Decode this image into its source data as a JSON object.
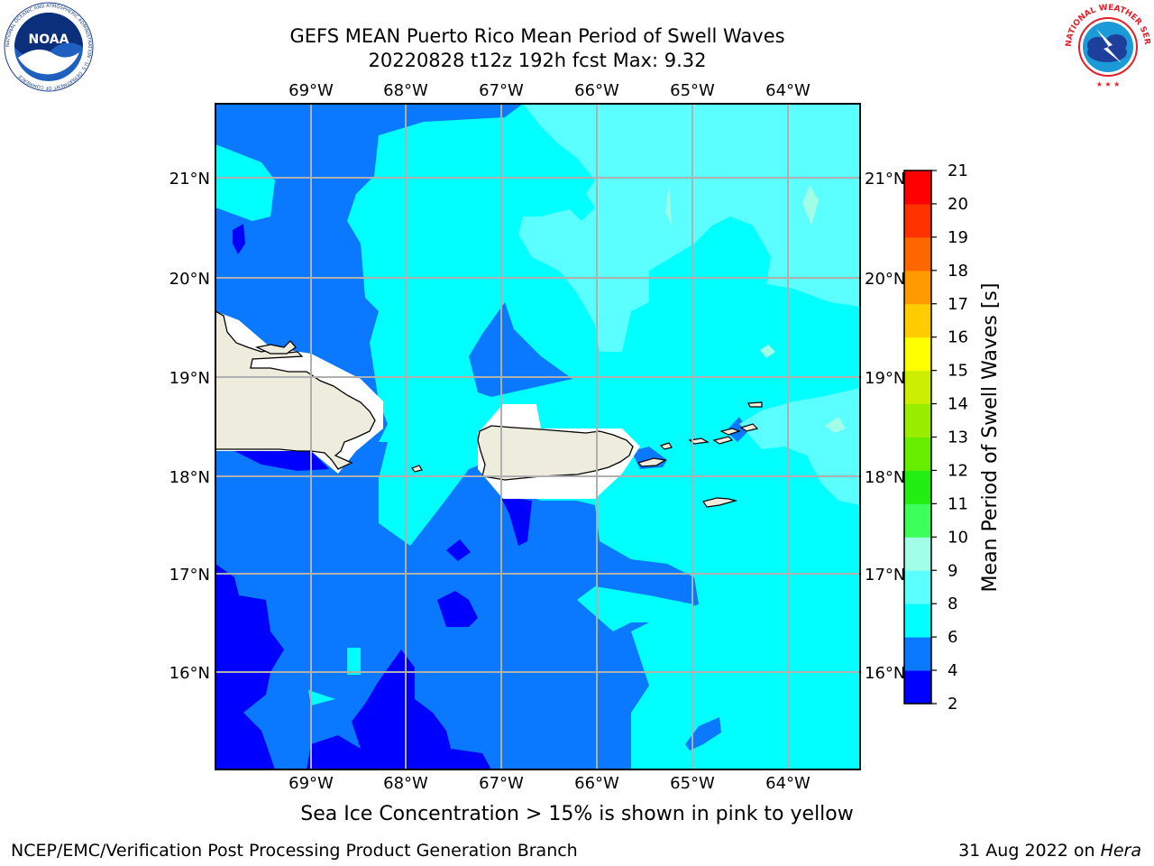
{
  "title": {
    "line1": "GEFS MEAN Puerto Rico Mean Period of Swell Waves",
    "line2": "20220828 t12z 192h fcst   Max: 9.32"
  },
  "map": {
    "lon_labels": [
      "69°W",
      "68°W",
      "67°W",
      "66°W",
      "65°W",
      "64°W"
    ],
    "lat_labels": [
      "21°N",
      "20°N",
      "19°N",
      "18°N",
      "17°N",
      "16°N"
    ],
    "land_color": "#eeecdc",
    "grid_color": "#b0b0b0"
  },
  "colorbar": {
    "label": "Mean Period of Swell Waves [s]",
    "ticks": [
      "2",
      "4",
      "6",
      "8",
      "9",
      "10",
      "11",
      "12",
      "13",
      "14",
      "15",
      "16",
      "17",
      "18",
      "19",
      "20",
      "21"
    ],
    "colors": [
      "#0000ff",
      "#0a78ff",
      "#00ffff",
      "#5cffff",
      "#a0ffe6",
      "#3dff5a",
      "#22ee11",
      "#66ee00",
      "#99ee00",
      "#ccee00",
      "#ffff00",
      "#ffcc00",
      "#ff9900",
      "#ff6600",
      "#ff3300",
      "#ff0000"
    ]
  },
  "chart_data": {
    "type": "heatmap",
    "title": "GEFS MEAN Puerto Rico Mean Period of Swell Waves",
    "subtitle": "20220828 t12z 192h fcst   Max: 9.32",
    "variable": "Mean Period of Swell Waves [s]",
    "max": 9.32,
    "lon_range": [
      -70,
      -63.3
    ],
    "lat_range": [
      15,
      21.7
    ],
    "levels": [
      2,
      4,
      6,
      8,
      9,
      10,
      11,
      12,
      13,
      14,
      15,
      16,
      17,
      18,
      19,
      20,
      21
    ],
    "grid": true
  },
  "footer": {
    "note": "Sea Ice Concentration > 15% is shown in pink to yellow",
    "credit_left": "NCEP/EMC/Verification Post Processing Product Generation Branch",
    "credit_date": "31 Aug 2022 on ",
    "credit_machine": "Hera"
  },
  "logos": {
    "noaa_text": "NOAA",
    "noaa_ring": "NATIONAL OCEANIC AND ATMOSPHERIC ADMINISTRATION · U.S. DEPARTMENT OF COMMERCE",
    "nws_ring": "NATIONAL WEATHER SERVICE"
  }
}
